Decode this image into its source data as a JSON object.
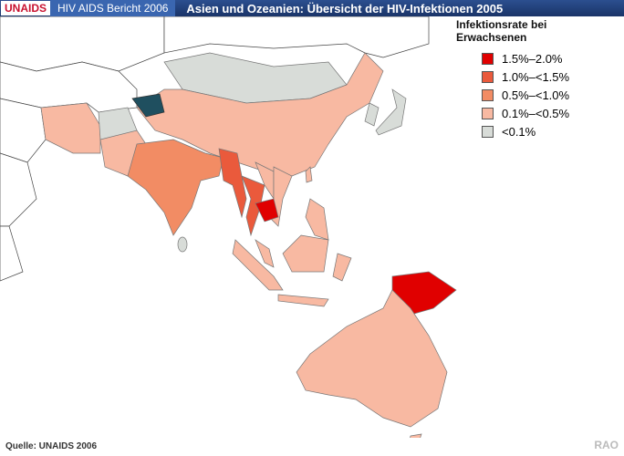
{
  "header": {
    "logo": "UNAIDS",
    "report": "HIV AIDS Bericht 2006",
    "title": "Asien und Ozeanien: Übersicht der HIV-Infektionen 2005"
  },
  "legend": {
    "title": "Infektionsrate bei Erwachsenen",
    "items": [
      {
        "label": "1.5%–2.0%",
        "color": "#e00000"
      },
      {
        "label": "1.0%–<1.5%",
        "color": "#ea5a3c"
      },
      {
        "label": "0.5%–<1.0%",
        "color": "#f28c64"
      },
      {
        "label": "0.1%–<0.5%",
        "color": "#f8b9a2"
      },
      {
        "label": "<0.1%",
        "color": "#d8dcd8"
      }
    ]
  },
  "footer": {
    "source": "Quelle: UNAIDS 2006",
    "credit": "RAO"
  }
}
